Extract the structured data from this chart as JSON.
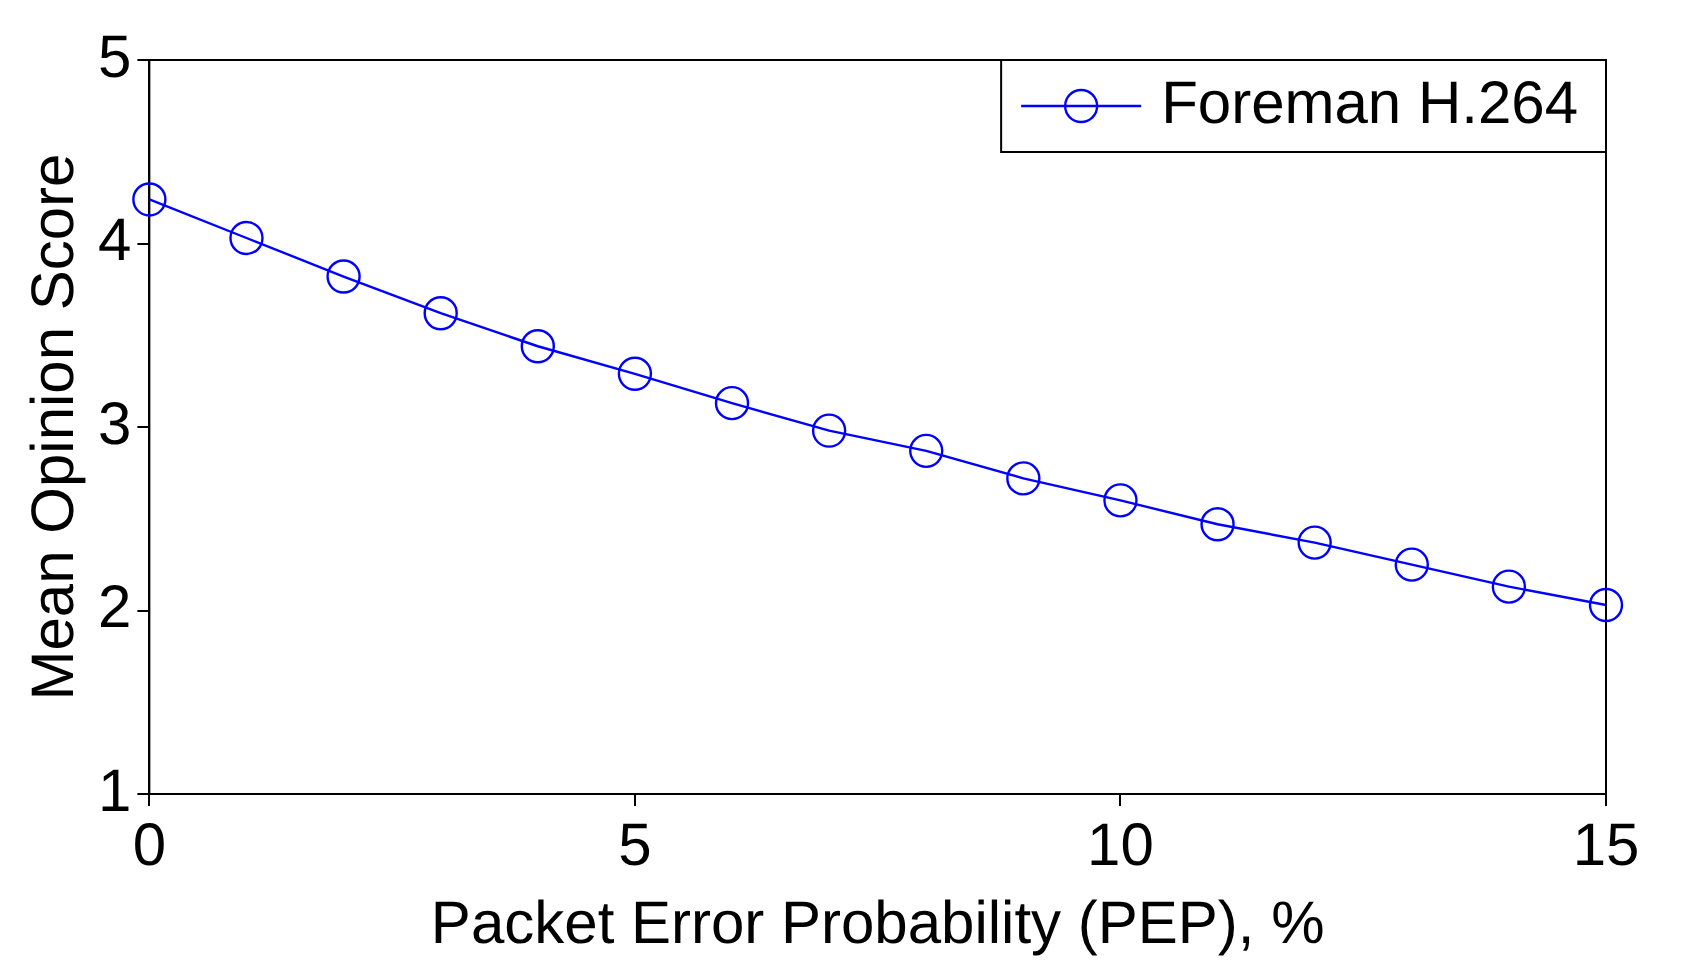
{
  "chart_data": {
    "type": "line",
    "xlabel": "Packet Error Probability (PEP), %",
    "ylabel": "Mean Opinion Score",
    "x": [
      0,
      1,
      2,
      3,
      4,
      5,
      6,
      7,
      8,
      9,
      10,
      11,
      12,
      13,
      14,
      15
    ],
    "series": [
      {
        "name": "Foreman H.264",
        "color": "#0000ff",
        "values": [
          4.24,
          4.03,
          3.82,
          3.62,
          3.44,
          3.29,
          3.13,
          2.98,
          2.87,
          2.72,
          2.6,
          2.47,
          2.37,
          2.25,
          2.13,
          2.03
        ]
      }
    ],
    "xlim": [
      0,
      15
    ],
    "xticks": [
      0,
      5,
      10,
      15
    ],
    "ylim": [
      1,
      5
    ],
    "yticks": [
      1,
      2,
      3,
      4,
      5
    ],
    "grid": false,
    "legend": "top right",
    "marker": "circle",
    "line_style": "solid"
  }
}
